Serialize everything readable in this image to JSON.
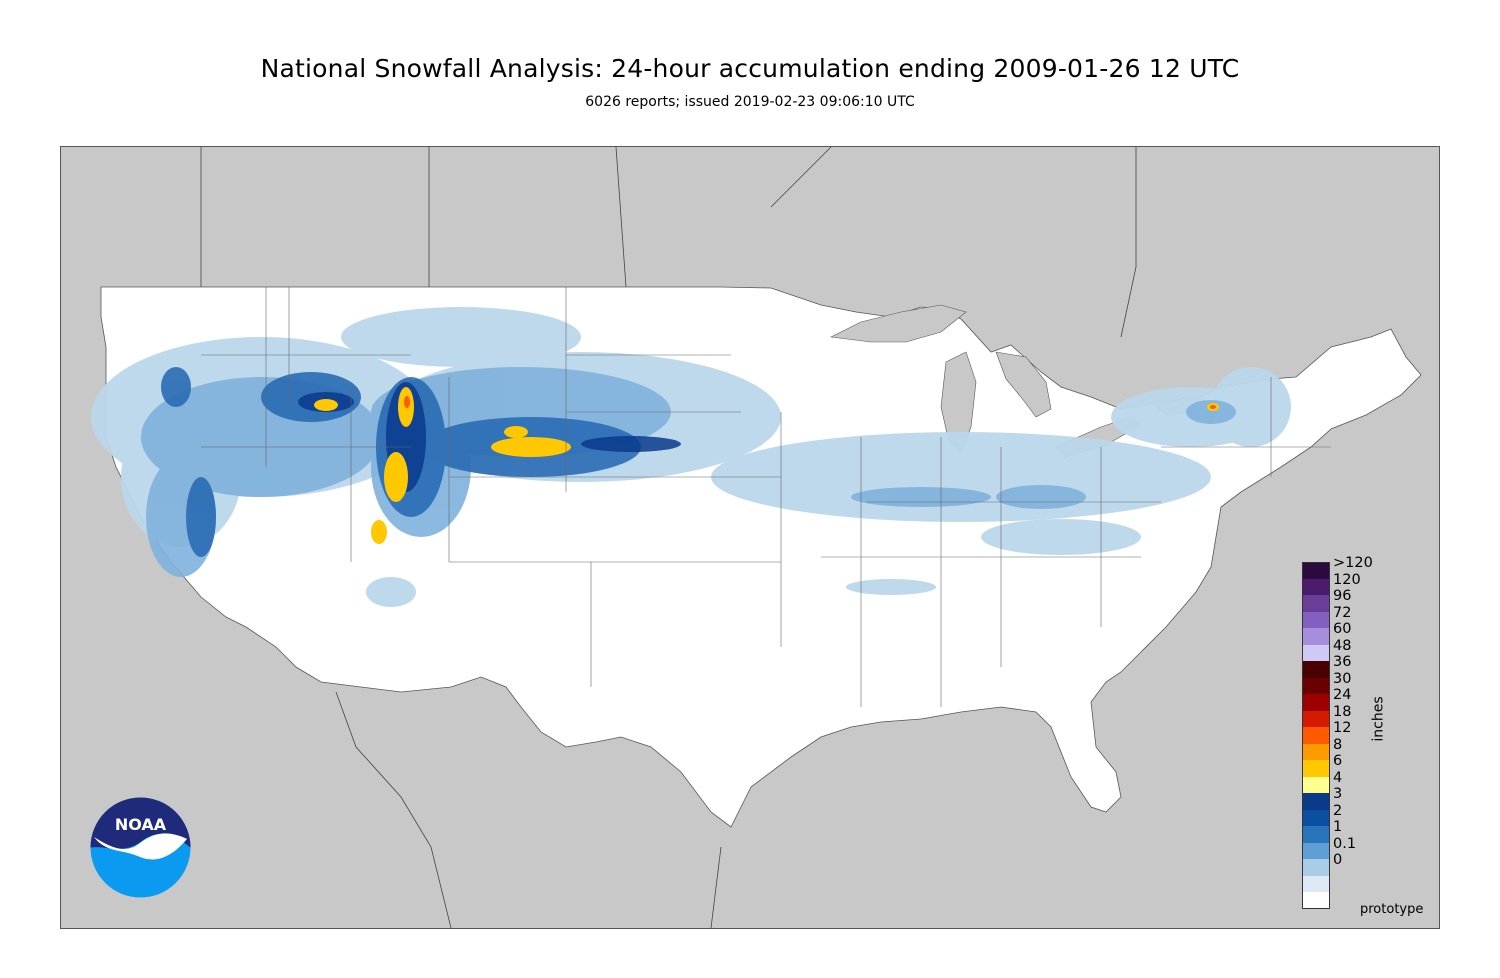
{
  "title": "National Snowfall Analysis: 24-hour accumulation ending 2009-01-26 12 UTC",
  "subtitle": "6026 reports; issued 2019-02-23 09:06:10 UTC",
  "legend": {
    "units_label": "inches",
    "items": [
      {
        "label": ">120",
        "color": "#2b0a3d"
      },
      {
        "label": "120",
        "color": "#4a1a6b"
      },
      {
        "label": "96",
        "color": "#6a3d99"
      },
      {
        "label": "72",
        "color": "#8360bf"
      },
      {
        "label": "60",
        "color": "#a58fdc"
      },
      {
        "label": "48",
        "color": "#cfcaf5"
      },
      {
        "label": "36",
        "color": "#4a0000"
      },
      {
        "label": "30",
        "color": "#6b0000"
      },
      {
        "label": "24",
        "color": "#9c0000"
      },
      {
        "label": "18",
        "color": "#d41a00"
      },
      {
        "label": "12",
        "color": "#ff5a00"
      },
      {
        "label": "8",
        "color": "#ff9900"
      },
      {
        "label": "6",
        "color": "#ffc800"
      },
      {
        "label": "4",
        "color": "#ffff90"
      },
      {
        "label": "3",
        "color": "#0a3a8c"
      },
      {
        "label": "2",
        "color": "#0b4fa0"
      },
      {
        "label": "1",
        "color": "#2a74bb"
      },
      {
        "label": "0.1",
        "color": "#5f9fd4"
      },
      {
        "label": "0",
        "color": "#a9cde6"
      }
    ],
    "extra_swatches": [
      "#dce9f4",
      "#ffffff"
    ]
  },
  "colors": {
    "land_outside": "#c8c8c8",
    "land_us": "#ffffff",
    "light_snow": "#bcd7eb",
    "medium_snow": "#7fb1dc",
    "heavy_snow": "#2a6cb5",
    "deep_snow": "#0a3a8c",
    "max_snow": "#ffc800"
  },
  "logo": {
    "text": "NOAA"
  },
  "footer": {
    "prototype_label": "prototype"
  }
}
